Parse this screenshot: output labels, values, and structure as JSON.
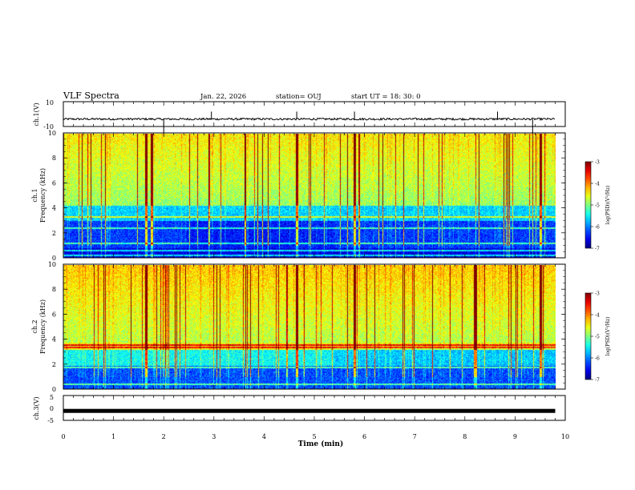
{
  "header": {
    "title": "VLF Spectra",
    "date": "Jan. 22, 2026",
    "station": "station= OUJ",
    "start": "start  UT =   18: 30: 0"
  },
  "colors": {
    "jet": [
      "#00007f",
      "#0000ff",
      "#007fff",
      "#00ffff",
      "#7fff7f",
      "#ffff00",
      "#ff7f00",
      "#ff0000",
      "#7f0000"
    ]
  },
  "chart_data": [
    {
      "type": "line",
      "name": "ch1-waveform",
      "ylabel": "ch.1(V)",
      "ylim": [
        -10,
        10
      ],
      "yticks": [
        "10",
        "-10"
      ],
      "xlim": [
        0,
        10
      ],
      "baseline_v": -4,
      "spikes_min": [
        2.0,
        2.95,
        4.65,
        5.8,
        8.65,
        9.35
      ]
    },
    {
      "type": "heatmap",
      "name": "ch1-spectrogram",
      "ylabel": "ch.1",
      "ylabel2": "Frequency (kHz)",
      "xlim": [
        0,
        9.8
      ],
      "ylim": [
        0,
        10
      ],
      "yticks": [
        "0",
        "2",
        "4",
        "6",
        "8",
        "10"
      ],
      "colorbar": {
        "label": "log(PSD)(V²/Hz)",
        "ticks": [
          "-3",
          "-4",
          "-5",
          "-6",
          "-7"
        ],
        "range": [
          -7,
          -3
        ]
      },
      "bands_khz": [
        0.2,
        0.6,
        1.2,
        2.4,
        3.3
      ],
      "bright_lines_min": [
        1.65,
        1.75,
        4.65,
        5.8,
        9.5
      ]
    },
    {
      "type": "heatmap",
      "name": "ch2-spectrogram",
      "ylabel": "ch.2",
      "ylabel2": "Frequency (kHz)",
      "xlim": [
        0,
        9.8
      ],
      "ylim": [
        0,
        10
      ],
      "yticks": [
        "0",
        "2",
        "4",
        "6",
        "8",
        "10"
      ],
      "colorbar": {
        "label": "log(PSD)(V²/Hz)",
        "ticks": [
          "-3",
          "-4",
          "-5",
          "-6",
          "-7"
        ],
        "range": [
          -7,
          -3
        ]
      },
      "bands_khz": [
        0.4,
        1.8,
        3.4,
        3.6
      ],
      "bright_lines_min": [
        1.65,
        4.65,
        5.8,
        8.2,
        9.5
      ]
    },
    {
      "type": "line",
      "name": "ch3-waveform",
      "ylabel": "ch.3(V)",
      "ylim": [
        -5,
        5
      ],
      "yticks": [
        "5",
        "0",
        "-5"
      ],
      "xlim": [
        0,
        10
      ],
      "baseline_v": -1.2
    }
  ],
  "xaxis": {
    "label": "Time  (min)",
    "ticks": [
      "0",
      "1",
      "2",
      "3",
      "4",
      "5",
      "6",
      "7",
      "8",
      "9",
      "10"
    ]
  }
}
